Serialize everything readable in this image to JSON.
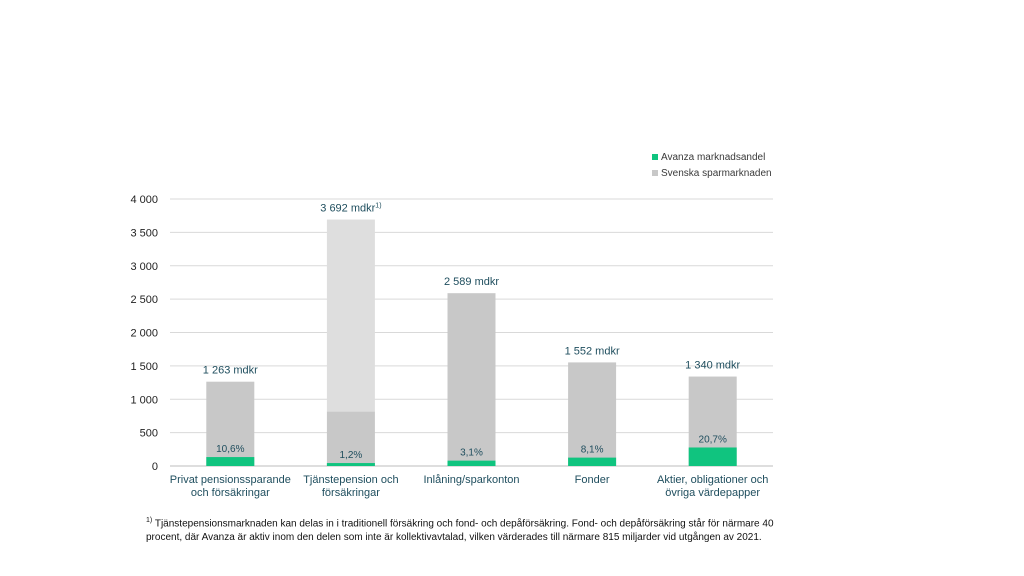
{
  "chart_data": {
    "type": "bar",
    "categories": [
      [
        "Privat pensionssparande",
        "och försäkringar"
      ],
      [
        "Tjänstepension och",
        "försäkringar"
      ],
      [
        "Inlåning/sparkonton"
      ],
      [
        "Fonder"
      ],
      [
        "Aktier, obligationer och",
        "övriga värdepapper"
      ]
    ],
    "totals": [
      1263,
      3692,
      2589,
      1552,
      1340
    ],
    "total_labels": [
      "1 263 mdkr",
      "3 692 mdkr",
      "2 589 mdkr",
      "1 552 mdkr",
      "1 340 mdkr"
    ],
    "total_label_notes": [
      "",
      "1)",
      "",
      "",
      ""
    ],
    "avanza_share_pct": [
      10.6,
      1.2,
      3.1,
      8.1,
      20.7
    ],
    "share_labels": [
      "10,6%",
      "1,2%",
      "3,1%",
      "8,1%",
      "20,7%"
    ],
    "tjanstepension_accessible_part": 815,
    "series": [
      {
        "name": "Avanza marknadsandel",
        "color": "#10c47f"
      },
      {
        "name": "Svenska sparmarknaden",
        "color": "#c8c8c8"
      }
    ],
    "light_segment_color": "#dedede",
    "yticks": [
      0,
      500,
      1000,
      1500,
      2000,
      2500,
      3000,
      3500,
      4000
    ],
    "ytick_labels": [
      "0",
      "500",
      "1 000",
      "1 500",
      "2 000",
      "2 500",
      "3 000",
      "3 500",
      "4 000"
    ],
    "ylim": [
      0,
      4000
    ],
    "grid": true,
    "legend_position": "top-right"
  },
  "footnote": {
    "marker": "1)",
    "text": "Tjänstepensionsmarknaden kan delas in i traditionell försäkring och fond- och depåförsäkring. Fond- och depåförsäkring står för närmare 40 procent, där Avanza är aktiv inom den delen som inte är kollektivavtalad, vilken värderades till närmare 815 miljarder vid utgången av 2021."
  }
}
